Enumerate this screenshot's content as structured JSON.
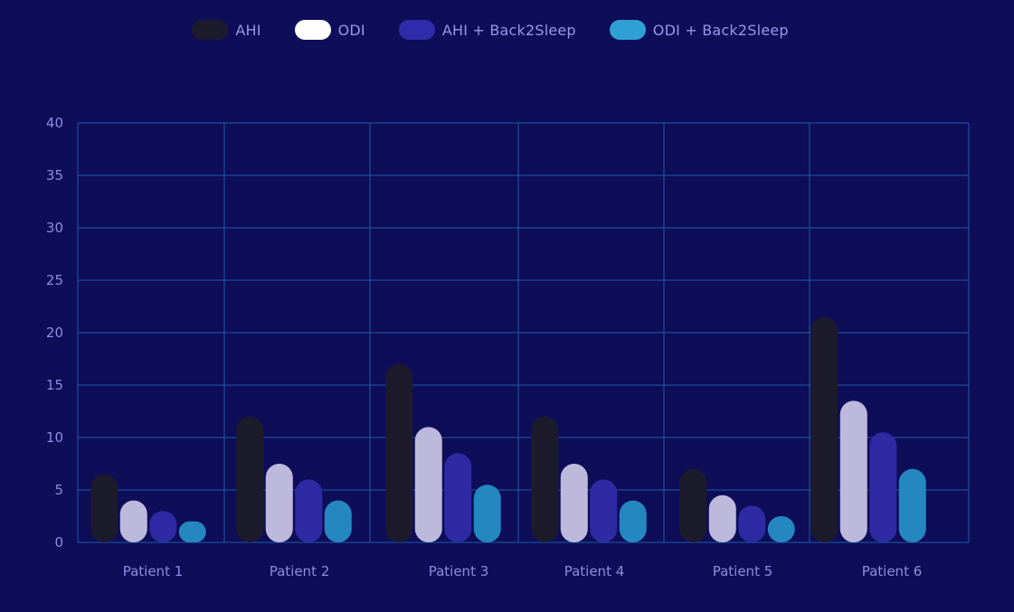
{
  "colors": {
    "background": "#0e0d58",
    "grid": "#1f5aa8",
    "text": "#8f8be0"
  },
  "chart_data": {
    "type": "bar",
    "categories": [
      "Patient 1",
      "Patient 2",
      "Patient 3",
      "Patient 4",
      "Patient 5",
      "Patient 6"
    ],
    "series": [
      {
        "name": "AHI",
        "color": "#1c1b2c",
        "legend_color": "#1c1b2c",
        "values": [
          6.5,
          12,
          17,
          12,
          7,
          21.5
        ]
      },
      {
        "name": "ODI",
        "color": "#bcb9dc",
        "legend_color": "#ffffff",
        "values": [
          4,
          7.5,
          11,
          7.5,
          4.5,
          13.5
        ]
      },
      {
        "name": "AHI + Back2Sleep",
        "color": "#2d2aa3",
        "legend_color": "#2f2cab",
        "values": [
          3,
          6,
          8.5,
          6,
          3.5,
          10.5
        ]
      },
      {
        "name": "ODI + Back2Sleep",
        "color": "#2587c0",
        "legend_color": "#2fa0d3",
        "values": [
          2,
          4,
          5.5,
          4,
          2.5,
          7
        ]
      }
    ],
    "ylim": [
      0,
      40
    ],
    "yticks": [
      0,
      5,
      10,
      15,
      20,
      25,
      30,
      35,
      40
    ],
    "grid": true,
    "legend_position": "top-center",
    "title": "",
    "xlabel": "",
    "ylabel": ""
  }
}
